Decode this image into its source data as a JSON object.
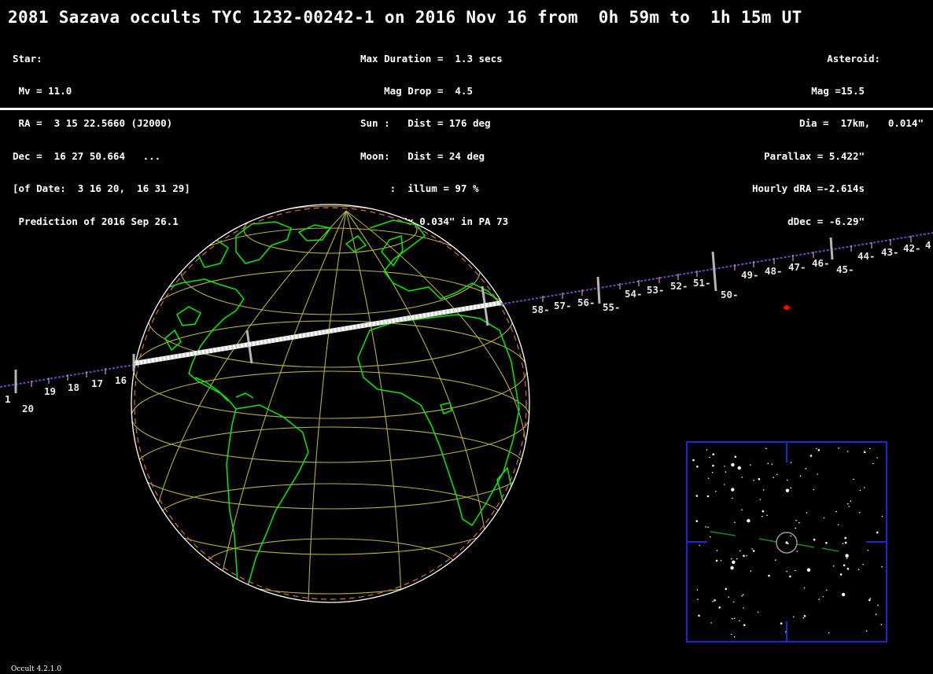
{
  "header": {
    "title": "2081 Sazava occults TYC 1232-00242-1 on 2016 Nov 16 from  0h 59m to  1h 15m UT"
  },
  "star_info": [
    "Star:",
    " Mv = 11.0",
    " RA =  3 15 22.5660 (J2000)",
    "Dec =  16 27 50.664   ...",
    "[of Date:  3 16 20,  16 31 29]",
    " Prediction of 2016 Sep 26.1"
  ],
  "event_info": [
    "Max Duration =  1.3 secs",
    "    Mag Drop =  4.5",
    "Sun :   Dist = 176 deg",
    "Moon:   Dist = 24 deg",
    "     :  illum = 97 %",
    "E 0.062\"x 0.034\" in PA 73"
  ],
  "asteroid_info": [
    "Asteroid:",
    "Mag =15.5",
    "Dia =  17km,   0.014\"",
    "Parallax = 5.422\"",
    "Hourly dRA =-2.614s",
    "dDec = -6.29\""
  ],
  "track_labels": {
    "left": [
      "1",
      "20",
      "19",
      "18",
      "17",
      "16"
    ],
    "right_lower": [
      "58-",
      "57-",
      "56-",
      "55-"
    ],
    "right_mid": [
      "54-",
      "53-",
      "52-",
      "51-",
      "50-"
    ],
    "right_upper": [
      "49-",
      "48-",
      "47-",
      "46-",
      "45-"
    ],
    "right_far": [
      "44-",
      "43-",
      "42-",
      "4"
    ]
  },
  "colors": {
    "background": "#000000",
    "coastline": "#00ee00",
    "grid": "#b8b040",
    "path": "#ffffff",
    "track": "#7a3fc0",
    "limb_outer": "#ffffff",
    "limb_dash": "#d0743a",
    "finder_frame": "#1a2ad0",
    "target_dot": "#ff0000"
  },
  "footer": {
    "version": "Occult 4.2.1.0"
  }
}
